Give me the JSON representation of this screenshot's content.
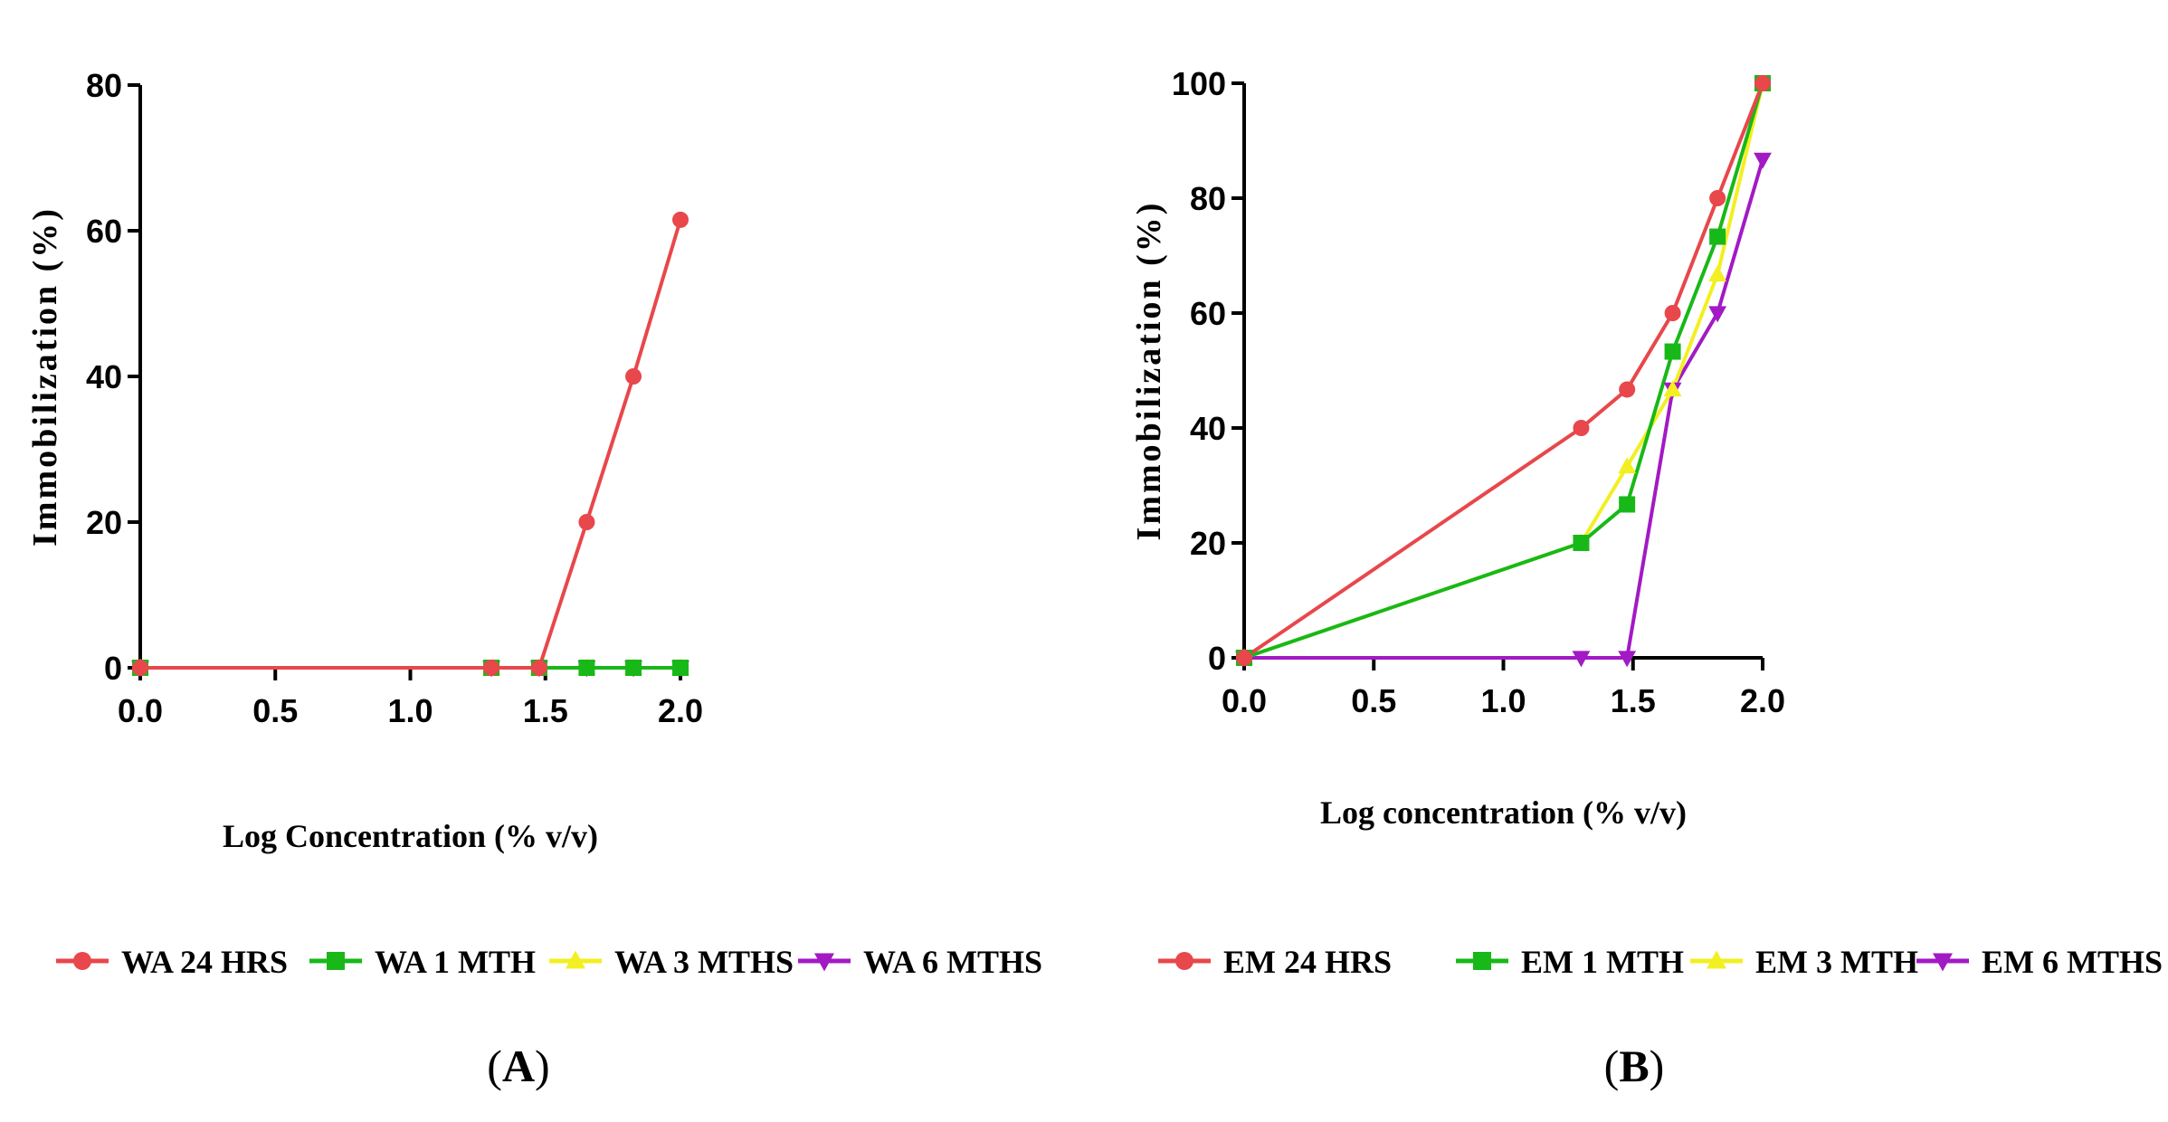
{
  "chart_data": [
    {
      "type": "line",
      "panel_label": "A",
      "xlabel": "Log Concentration  (% v/v)",
      "ylabel": "Immobilization (%)",
      "xlim": [
        0,
        2.0
      ],
      "ylim": [
        0,
        80
      ],
      "xticks": [
        0,
        0.5,
        1.0,
        1.5,
        2.0
      ],
      "xtick_labels": [
        "0.0",
        "0.5",
        "1.0",
        "1.5",
        "2.0"
      ],
      "yticks": [
        0,
        20,
        40,
        60,
        80
      ],
      "ytick_labels": [
        "0",
        "20",
        "40",
        "60",
        "80"
      ],
      "legend_position": "bottom",
      "series": [
        {
          "name": "WA 24 HRS",
          "color": "#e8474b",
          "marker": "circle",
          "x": [
            0,
            1.3,
            1.477,
            1.653,
            1.826,
            2.0
          ],
          "y": [
            0,
            0,
            0,
            20,
            40,
            61.5
          ]
        },
        {
          "name": "WA 1 MTH",
          "color": "#18b818",
          "marker": "square",
          "x": [
            0,
            1.3,
            1.477,
            1.653,
            1.826,
            2.0
          ],
          "y": [
            0,
            0,
            0,
            0,
            0,
            0
          ]
        },
        {
          "name": "WA 3 MTHS",
          "color": "#f2ef22",
          "marker": "triangle-up",
          "x": [
            0,
            1.3,
            1.477,
            1.653,
            1.826,
            2.0
          ],
          "y": [
            0,
            0,
            0,
            0,
            0,
            0
          ]
        },
        {
          "name": "WA 6 MTHS",
          "color": "#a21ac4",
          "marker": "triangle-down",
          "x": [
            0,
            1.3,
            1.477,
            1.653,
            1.826,
            2.0
          ],
          "y": [
            0,
            0,
            0,
            0,
            0,
            0
          ]
        }
      ]
    },
    {
      "type": "line",
      "panel_label": "B",
      "xlabel": "Log concentration (% v/v)",
      "ylabel": "Immobilization (%)",
      "xlim": [
        0,
        2.0
      ],
      "ylim": [
        0,
        100
      ],
      "xticks": [
        0,
        0.5,
        1.0,
        1.5,
        2.0
      ],
      "xtick_labels": [
        "0.0",
        "0.5",
        "1.0",
        "1.5",
        "2.0"
      ],
      "yticks": [
        0,
        20,
        40,
        60,
        80,
        100
      ],
      "ytick_labels": [
        "0",
        "20",
        "40",
        "60",
        "80",
        "100"
      ],
      "legend_position": "bottom",
      "series": [
        {
          "name": "EM 24 HRS",
          "color": "#e8474b",
          "marker": "circle",
          "x": [
            0,
            1.3,
            1.477,
            1.653,
            1.826,
            2.0
          ],
          "y": [
            0,
            40,
            46.7,
            60,
            80,
            100
          ]
        },
        {
          "name": "EM 1 MTH",
          "color": "#18b818",
          "marker": "square",
          "x": [
            0,
            1.3,
            1.477,
            1.653,
            1.826,
            2.0
          ],
          "y": [
            0,
            20,
            26.7,
            53.3,
            73.3,
            100
          ]
        },
        {
          "name": "EM 3 MTH",
          "color": "#f2ef22",
          "marker": "triangle-up",
          "x": [
            0,
            1.3,
            1.477,
            1.653,
            1.826,
            2.0
          ],
          "y": [
            0,
            20,
            33.3,
            46.7,
            66.7,
            100
          ]
        },
        {
          "name": "EM 6 MTHS",
          "color": "#a21ac4",
          "marker": "triangle-down",
          "x": [
            0,
            1.3,
            1.477,
            1.653,
            1.826,
            2.0
          ],
          "y": [
            0,
            0,
            0,
            46.7,
            60,
            86.7
          ]
        }
      ]
    }
  ]
}
